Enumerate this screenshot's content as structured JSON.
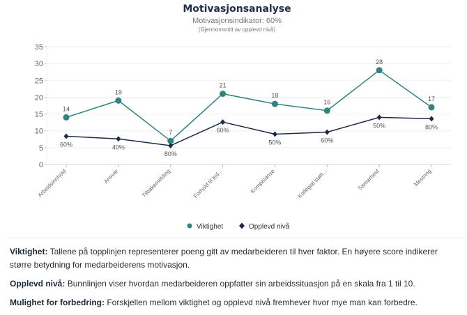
{
  "chart_data": {
    "type": "line",
    "title": "Motivasjonsanalyse",
    "subtitle": "Motivasjonsindikator: 60%",
    "subsubtitle": "(Gjennomsnitt av opplevd nivå)",
    "categories": [
      "Arbeidsinnhold",
      "Ansvar",
      "Tilbakemelding",
      "Forhold til led...",
      "Kompetanse",
      "Kollegial støtt...",
      "Samarbeid",
      "Mestring"
    ],
    "ylim": [
      0,
      35
    ],
    "yticks": [
      0,
      5,
      10,
      15,
      20,
      25,
      30,
      35
    ],
    "grid": true,
    "legend_position": "bottom",
    "series": [
      {
        "name": "Viktighet",
        "color": "#2e8580",
        "marker": "circle",
        "values": [
          14,
          19,
          7,
          21,
          18,
          16,
          28,
          17
        ],
        "labels": [
          "14",
          "19",
          "7",
          "21",
          "18",
          "16",
          "28",
          "17"
        ]
      },
      {
        "name": "Opplevd nivå",
        "color": "#1b2a4a",
        "marker": "diamond",
        "values": [
          8.4,
          7.6,
          5.6,
          12.6,
          9.0,
          9.6,
          14.0,
          13.6
        ],
        "labels": [
          "60%",
          "40%",
          "80%",
          "60%",
          "50%",
          "60%",
          "50%",
          "80%"
        ]
      }
    ]
  },
  "notes": [
    {
      "label": "Viktighet:",
      "text": " Tallene på topplinjen representerer poeng gitt av medarbeideren til hver faktor. En høyere score indikerer større betydning for medarbeiderens motivasjon."
    },
    {
      "label": "Opplevd nivå:",
      "text": " Bunnlinjen viser hvordan medarbeideren oppfatter sin arbeidssituasjon på en skala fra 1 til 10."
    },
    {
      "label": "Mulighet for forbedring:",
      "text": " Forskjellen mellom viktighet og opplevd nivå fremhever hvor mye man kan forbedre."
    }
  ]
}
